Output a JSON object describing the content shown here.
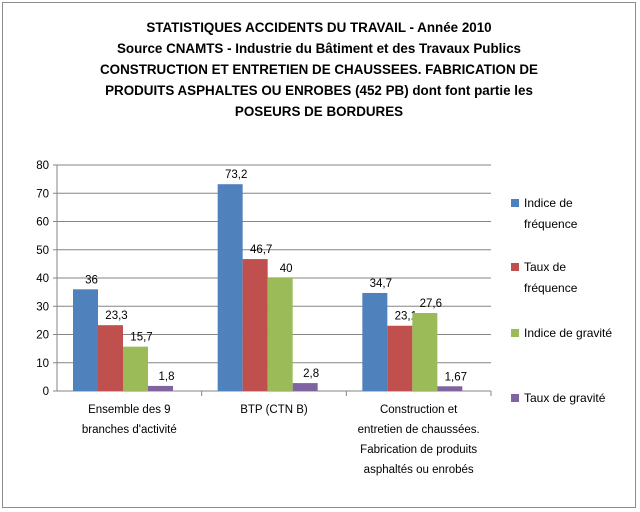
{
  "chart_data": {
    "type": "bar",
    "title_lines": [
      "STATISTIQUES ACCIDENTS DU TRAVAIL - Année 2010",
      "Source CNAMTS - Industrie du Bâtiment et des Travaux Publics",
      "CONSTRUCTION ET ENTRETIEN DE CHAUSSEES. FABRICATION DE",
      "PRODUITS ASPHALTES OU ENROBES (452 PB) dont font partie les",
      "POSEURS DE BORDURES"
    ],
    "categories": [
      [
        "Ensemble des 9",
        "branches d'activité"
      ],
      [
        "BTP (CTN B)"
      ],
      [
        "Construction et",
        "entretien de chaussées.",
        "Fabrication de produits",
        "asphaltés ou enrobés"
      ]
    ],
    "series": [
      {
        "name_lines": [
          "Indice de",
          "fréquence"
        ],
        "color": "#4f81bd",
        "values": [
          36,
          73.2,
          34.7
        ],
        "labels": [
          "36",
          "73,2",
          "34,7"
        ]
      },
      {
        "name_lines": [
          "Taux de",
          "fréquence"
        ],
        "color": "#c0504d",
        "values": [
          23.3,
          46.7,
          23.1
        ],
        "labels": [
          "23,3",
          "46,7",
          "23,1"
        ]
      },
      {
        "name_lines": [
          "Indice de gravité"
        ],
        "color": "#9bbb59",
        "values": [
          15.7,
          40,
          27.6
        ],
        "labels": [
          "15,7",
          "40",
          "27,6"
        ]
      },
      {
        "name_lines": [
          "Taux de gravité"
        ],
        "color": "#8064a2",
        "values": [
          1.8,
          2.8,
          1.67
        ],
        "labels": [
          "1,8",
          "2,8",
          "1,67"
        ]
      }
    ],
    "ylim": [
      0,
      80
    ],
    "yticks": [
      "0",
      "10",
      "20",
      "30",
      "40",
      "50",
      "60",
      "70",
      "80"
    ],
    "grid": true,
    "legend_position": "right"
  }
}
